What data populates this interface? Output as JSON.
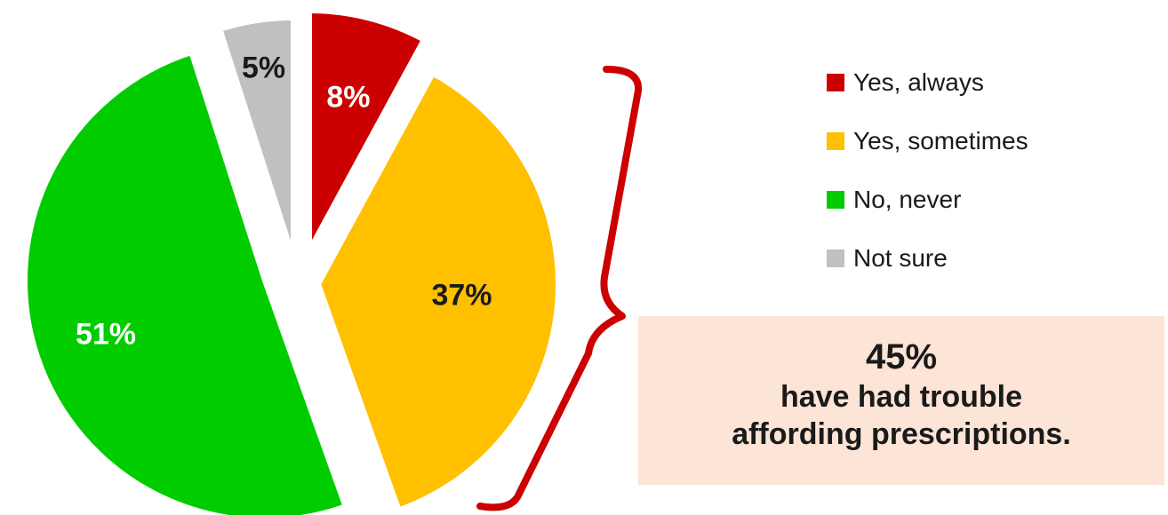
{
  "chart_data": {
    "type": "pie",
    "slices": [
      {
        "label": "Yes, always",
        "value": 8,
        "value_label": "8%",
        "color": "#cc0000",
        "label_color": "#ffffff"
      },
      {
        "label": "Yes, sometimes",
        "value": 37,
        "value_label": "37%",
        "color": "#ffc000",
        "label_color": "#1a1a1a"
      },
      {
        "label": "No, never",
        "value": 51,
        "value_label": "51%",
        "color": "#00cc00",
        "label_color": "#ffffff"
      },
      {
        "label": "Not sure",
        "value": 5,
        "value_label": "5%",
        "color": "#c0c0c0",
        "label_color": "#1a1a1a"
      }
    ],
    "legend_position": "right",
    "exploded": true
  },
  "callout": {
    "value": "45%",
    "line1": "have had trouble",
    "line2": "affording prescriptions."
  },
  "bracket_color": "#cc0000"
}
